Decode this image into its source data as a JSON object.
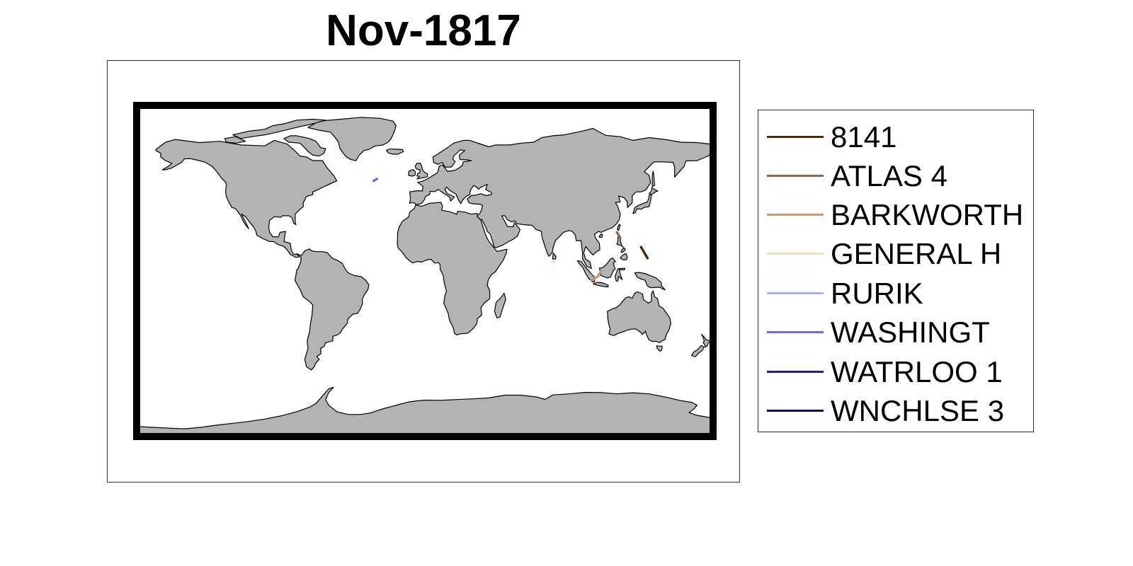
{
  "title": "Nov-1817",
  "map": {
    "land_color": "#b3b3b3",
    "coast_color": "#000000",
    "ocean_color": "#ffffff",
    "frame_color": "#000000"
  },
  "tracks": [
    {
      "name": "8141",
      "color": "#4a2a10",
      "points": [
        [
          135,
          13
        ],
        [
          139,
          7
        ]
      ]
    },
    {
      "name": "ATLAS 4",
      "color": "#8c6a4f",
      "points": [
        [
          120,
          21
        ],
        [
          122,
          18
        ]
      ]
    },
    {
      "name": "BARKWORTH",
      "color": "#c49a7c",
      "points": [
        [
          104,
          -5
        ],
        [
          108,
          -3
        ],
        [
          110,
          0
        ]
      ]
    },
    {
      "name": "GENERAL H",
      "color": "#f6dfc0",
      "points": [
        [
          80,
          5
        ],
        [
          81,
          5
        ]
      ]
    },
    {
      "name": "RURIK",
      "color": "#aab0f2",
      "points": []
    },
    {
      "name": "WASHINGT",
      "color": "#6b70e0",
      "points": [
        [
          -32,
          49
        ],
        [
          -30,
          50
        ]
      ]
    },
    {
      "name": "WATRLOO 1",
      "color": "#1f1ea0",
      "points": []
    },
    {
      "name": "WNCHLSE 3",
      "color": "#0a0a50",
      "points": []
    }
  ]
}
